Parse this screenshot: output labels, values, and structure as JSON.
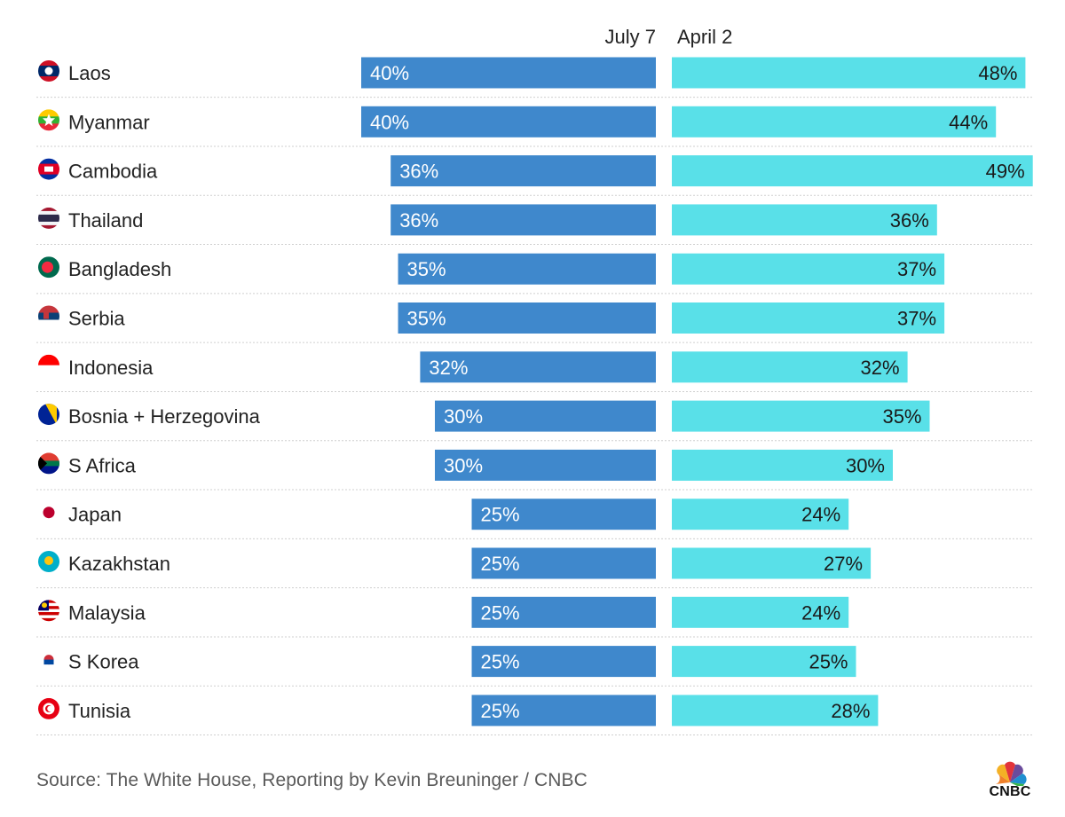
{
  "chart_data": {
    "type": "bar",
    "title": "",
    "xlabel": "",
    "ylabel": "",
    "xlim": [
      0,
      50
    ],
    "grid": false,
    "legend": "top-center",
    "categories": [
      "Laos",
      "Myanmar",
      "Cambodia",
      "Thailand",
      "Bangladesh",
      "Serbia",
      "Indonesia",
      "Bosnia + Herzegovina",
      "S Africa",
      "Japan",
      "Kazakhstan",
      "Malaysia",
      "S Korea",
      "Tunisia"
    ],
    "flags": [
      "laos-flag-icon",
      "myanmar-flag-icon",
      "cambodia-flag-icon",
      "thailand-flag-icon",
      "bangladesh-flag-icon",
      "serbia-flag-icon",
      "indonesia-flag-icon",
      "bosnia-flag-icon",
      "south-africa-flag-icon",
      "japan-flag-icon",
      "kazakhstan-flag-icon",
      "malaysia-flag-icon",
      "south-korea-flag-icon",
      "tunisia-flag-icon"
    ],
    "series": [
      {
        "name": "July 7",
        "color": "#3f88cc",
        "direction": "left",
        "values": [
          40,
          40,
          36,
          36,
          35,
          35,
          32,
          30,
          30,
          25,
          25,
          25,
          25,
          25
        ],
        "labels": [
          "40%",
          "40%",
          "36%",
          "36%",
          "35%",
          "35%",
          "32%",
          "30%",
          "30%",
          "25%",
          "25%",
          "25%",
          "25%",
          "25%"
        ]
      },
      {
        "name": "April 2",
        "color": "#59e0e8",
        "direction": "right",
        "values": [
          48,
          44,
          49,
          36,
          37,
          37,
          32,
          35,
          30,
          24,
          27,
          24,
          25,
          28
        ],
        "labels": [
          "48%",
          "44%",
          "49%",
          "36%",
          "37%",
          "37%",
          "32%",
          "35%",
          "30%",
          "24%",
          "27%",
          "24%",
          "25%",
          "28%"
        ]
      }
    ]
  },
  "footer": {
    "source": "Source: The White House, Reporting by Kevin Breuninger / CNBC",
    "logo_text": "CNBC"
  },
  "colors": {
    "july_bar": "#3f88cc",
    "april_bar": "#59e0e8",
    "divider": "#cfcfcf"
  }
}
